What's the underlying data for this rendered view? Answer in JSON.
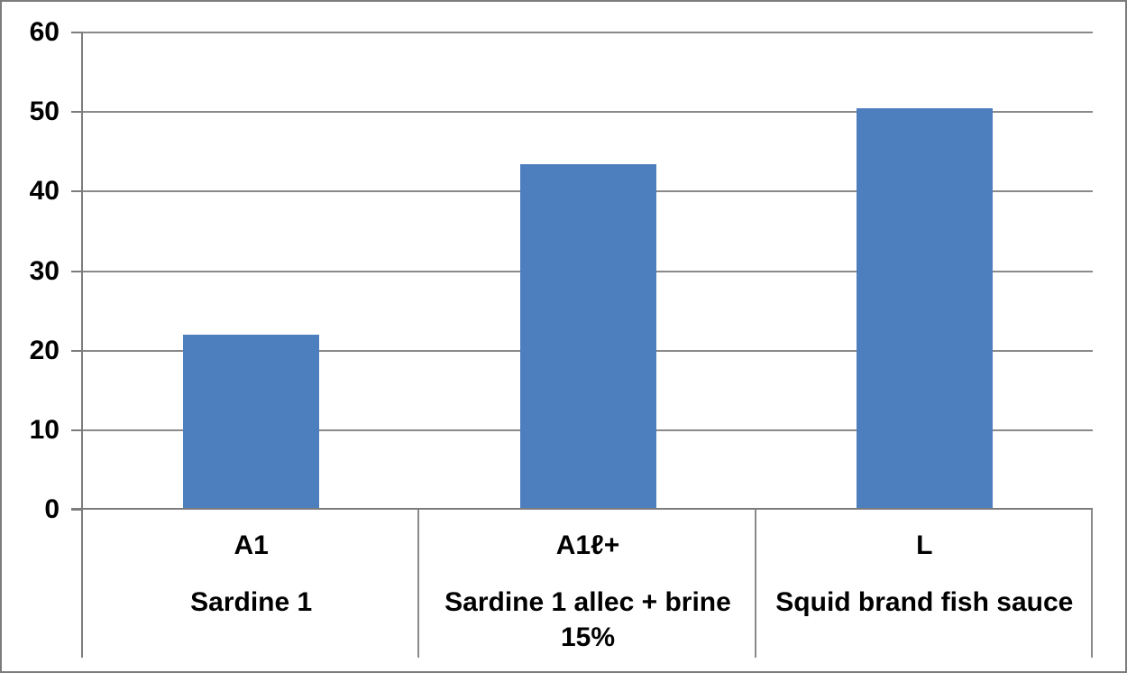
{
  "chart_data": {
    "type": "bar",
    "title": "",
    "xlabel": "",
    "ylabel": "",
    "categories": [
      "A1",
      "A1ℓ+",
      "L"
    ],
    "group_labels": [
      "Sardine 1",
      "Sardine 1 allec + brine 15%",
      "Squid brand fish sauce"
    ],
    "values": [
      22,
      43.4,
      50.5
    ],
    "ylim": [
      0,
      60
    ],
    "yticks": [
      0,
      10,
      20,
      30,
      40,
      50,
      60
    ],
    "grid": "horizontal",
    "legend_position": "none",
    "colors": {
      "bar": "#4D7EBE",
      "gridline": "#8a8a8a",
      "axis": "#7c7c7c",
      "separator": "#8a8a8a",
      "frame_border": "#7c7c7c",
      "text": "#000000",
      "background": "#ffffff"
    }
  }
}
